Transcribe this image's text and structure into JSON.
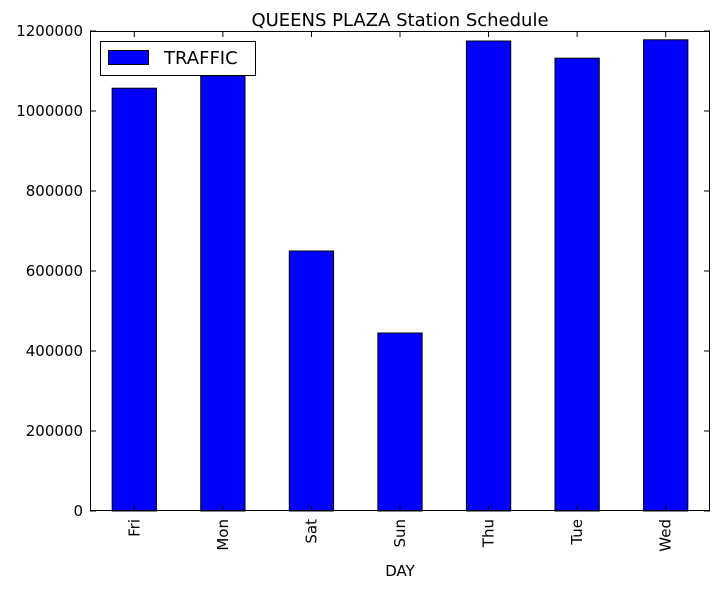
{
  "chart_data": {
    "type": "bar",
    "title": "QUEENS PLAZA Station Schedule",
    "xlabel": "DAY",
    "ylabel": "",
    "categories": [
      "Fri",
      "Mon",
      "Sat",
      "Sun",
      "Thu",
      "Tue",
      "Wed"
    ],
    "series": [
      {
        "name": "TRAFFIC",
        "values": [
          1057000,
          1088000,
          650000,
          445000,
          1175000,
          1132000,
          1178000
        ],
        "color": "#0000ff"
      }
    ],
    "ylim": [
      0,
      1200000
    ],
    "yticks": [
      0,
      200000,
      400000,
      600000,
      800000,
      1000000,
      1200000
    ],
    "ytick_labels": [
      "0",
      "200000",
      "400000",
      "600000",
      "800000",
      "1000000",
      "1200000"
    ],
    "legend_position": "top-left",
    "grid": false
  }
}
